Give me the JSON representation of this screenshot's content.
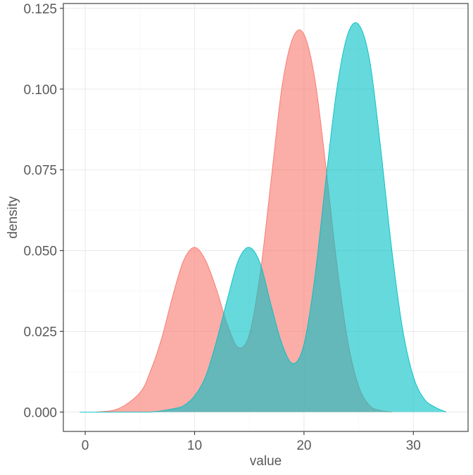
{
  "chart_data": {
    "type": "area",
    "title": "",
    "xlabel": "value",
    "ylabel": "density",
    "xlim": [
      -2,
      35
    ],
    "ylim": [
      -0.006,
      0.1265
    ],
    "x_ticks": [
      0,
      10,
      20,
      30
    ],
    "x_tick_labels": [
      "0",
      "10",
      "20",
      "30"
    ],
    "y_ticks": [
      0.0,
      0.025,
      0.05,
      0.075,
      0.1,
      0.125
    ],
    "y_tick_labels": [
      "0.000",
      "0.025",
      "0.050",
      "0.075",
      "0.100",
      "0.125"
    ],
    "grid": true,
    "legend": "none",
    "series": [
      {
        "color": "#F8766D",
        "opacity": 0.6,
        "x": [
          1.0,
          3.0,
          5.0,
          6.0,
          7.0,
          8.0,
          9.0,
          10.0,
          11.0,
          12.0,
          13.0,
          14.0,
          15.0,
          16.0,
          17.0,
          18.0,
          19.0,
          20.0,
          21.0,
          22.0,
          23.0,
          24.0,
          25.0,
          26.0,
          27.0,
          28.0
        ],
        "y": [
          0.0,
          0.001,
          0.006,
          0.013,
          0.023,
          0.036,
          0.047,
          0.051,
          0.047,
          0.038,
          0.027,
          0.02,
          0.024,
          0.043,
          0.072,
          0.101,
          0.116,
          0.117,
          0.103,
          0.076,
          0.046,
          0.022,
          0.008,
          0.002,
          0.0005,
          0.0
        ]
      },
      {
        "color": "#00BFC4",
        "opacity": 0.6,
        "x": [
          -0.5,
          3.0,
          6.0,
          8.0,
          9.0,
          10.0,
          11.0,
          12.0,
          13.0,
          14.0,
          15.0,
          16.0,
          17.0,
          18.0,
          19.0,
          20.0,
          21.0,
          22.0,
          23.0,
          24.0,
          25.0,
          26.0,
          27.0,
          28.0,
          29.0,
          30.0,
          31.0,
          32.0,
          33.0
        ],
        "y": [
          0.0,
          0.0,
          0.0,
          0.001,
          0.002,
          0.005,
          0.011,
          0.022,
          0.035,
          0.047,
          0.051,
          0.046,
          0.033,
          0.021,
          0.015,
          0.021,
          0.042,
          0.072,
          0.1,
          0.117,
          0.12,
          0.109,
          0.082,
          0.051,
          0.026,
          0.011,
          0.004,
          0.0015,
          0.0
        ]
      }
    ]
  }
}
